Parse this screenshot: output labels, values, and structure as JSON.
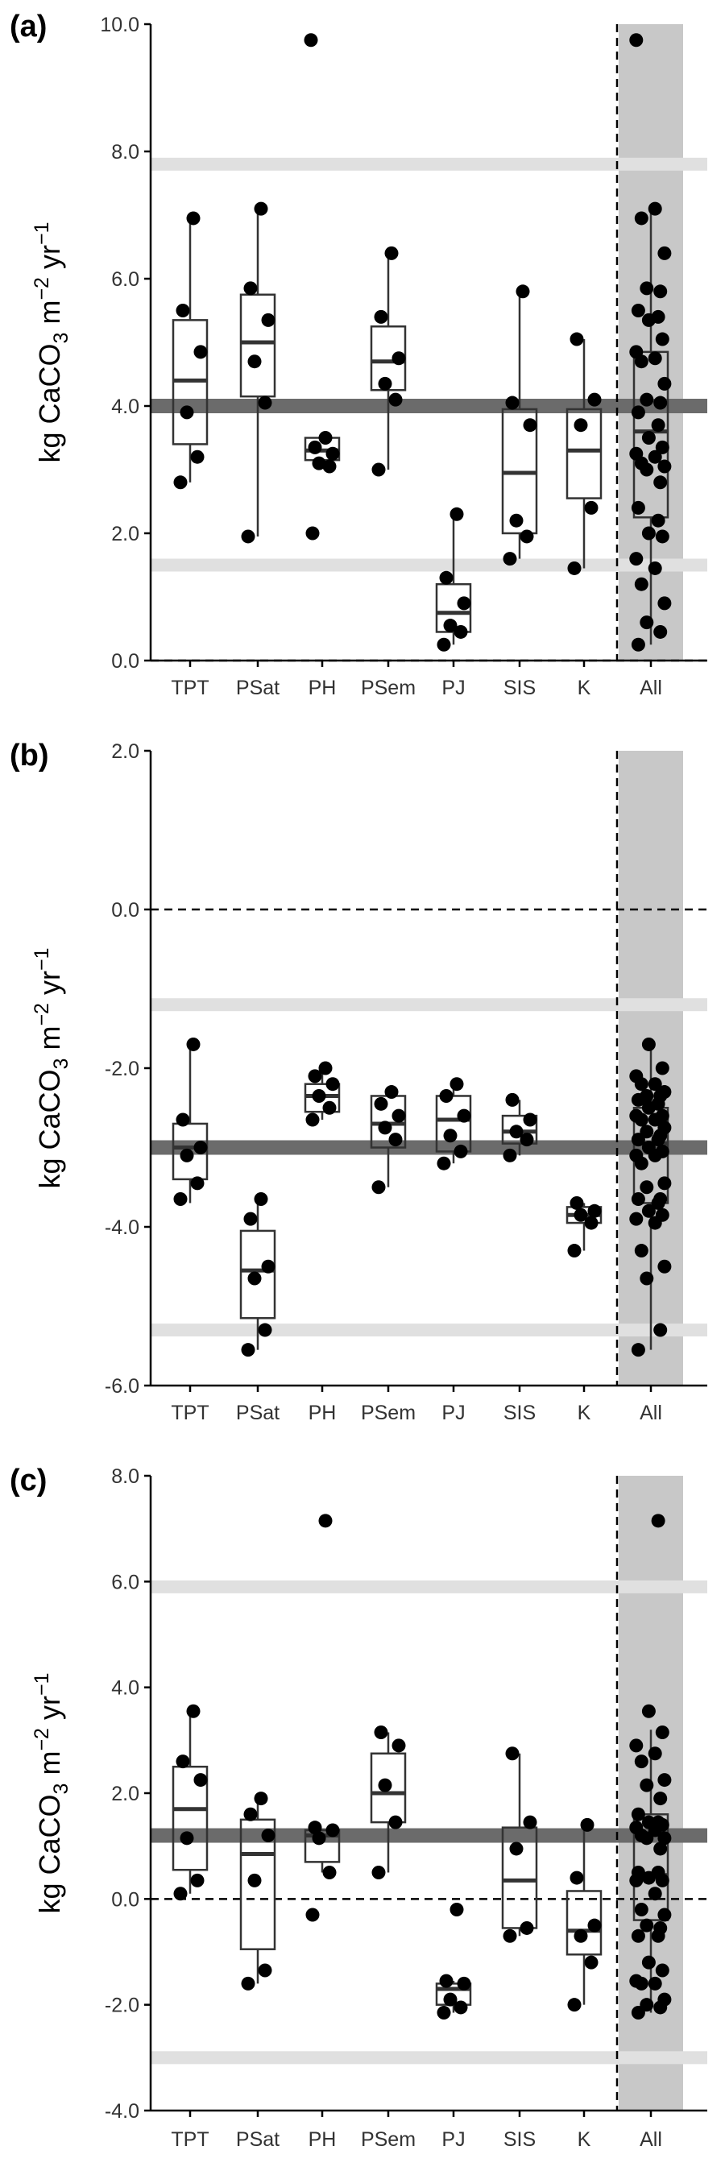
{
  "figure": {
    "ylabel": "kg CaCO3 m-2 yr-1",
    "ylabel_parts": {
      "base": "kg CaCO",
      "sub": "3",
      "m": " m",
      "sup1": "−2",
      "yr": " yr",
      "sup2": "−1"
    }
  },
  "colors": {
    "points": "#000000",
    "box_stroke": "#333333",
    "mean_band": "#6b6b6b",
    "ci_band": "#e0e0e0",
    "all_background": "#c8c8c8",
    "axis": "#000000"
  },
  "chart_data": [
    {
      "panel": "(a)",
      "type": "box",
      "categories": [
        "TPT",
        "PSat",
        "PH",
        "PSem",
        "PJ",
        "SIS",
        "K",
        "All"
      ],
      "ylim": [
        0,
        10
      ],
      "yticks": [
        0,
        2,
        4,
        6,
        8,
        10
      ],
      "ytick_labels": [
        "0.0",
        "2.0",
        "4.0",
        "6.0",
        "8.0",
        "10.0"
      ],
      "reference_lines": {
        "mean": 4.0,
        "lower": 1.5,
        "upper": 7.8,
        "zero_dashed": 0.0
      },
      "boxes": [
        {
          "q1": 3.4,
          "median": 4.4,
          "q3": 5.35,
          "wmin": 2.8,
          "wmax": 6.95
        },
        {
          "q1": 4.15,
          "median": 5.0,
          "q3": 5.75,
          "wmin": 1.95,
          "wmax": 7.1
        },
        {
          "q1": 3.15,
          "median": 3.3,
          "q3": 3.5,
          "wmin": 3.05,
          "wmax": 3.5
        },
        {
          "q1": 4.25,
          "median": 4.7,
          "q3": 5.25,
          "wmin": 3.0,
          "wmax": 6.4
        },
        {
          "q1": 0.45,
          "median": 0.75,
          "q3": 1.2,
          "wmin": 0.25,
          "wmax": 2.3
        },
        {
          "q1": 2.0,
          "median": 2.95,
          "q3": 3.95,
          "wmin": 1.6,
          "wmax": 5.8
        },
        {
          "q1": 2.55,
          "median": 3.3,
          "q3": 3.95,
          "wmin": 1.45,
          "wmax": 5.05
        },
        {
          "q1": 2.25,
          "median": 3.6,
          "q3": 4.85,
          "wmin": 0.25,
          "wmax": 7.1
        }
      ],
      "points": [
        [
          2.8,
          3.2,
          3.9,
          4.85,
          5.5,
          6.95
        ],
        [
          1.95,
          4.05,
          4.7,
          5.35,
          5.85,
          7.1
        ],
        [
          2.0,
          3.05,
          3.1,
          3.25,
          3.35,
          3.5,
          9.75
        ],
        [
          3.0,
          4.1,
          4.35,
          4.75,
          5.4,
          6.4
        ],
        [
          0.25,
          0.45,
          0.55,
          0.9,
          1.3,
          2.3
        ],
        [
          1.6,
          1.95,
          2.2,
          3.7,
          4.05,
          5.8
        ],
        [
          1.45,
          2.4,
          3.7,
          4.1,
          5.05
        ],
        [
          0.25,
          0.45,
          0.6,
          0.9,
          1.2,
          1.45,
          1.6,
          1.95,
          2.0,
          2.2,
          2.4,
          2.8,
          3.0,
          3.05,
          3.1,
          3.2,
          3.25,
          3.35,
          3.5,
          3.7,
          3.9,
          4.05,
          4.1,
          4.35,
          4.7,
          4.75,
          4.85,
          5.05,
          5.35,
          5.4,
          5.5,
          5.8,
          5.85,
          6.4,
          6.95,
          7.1,
          9.75
        ]
      ]
    },
    {
      "panel": "(b)",
      "type": "box",
      "categories": [
        "TPT",
        "PSat",
        "PH",
        "PSem",
        "PJ",
        "SIS",
        "K",
        "All"
      ],
      "ylim": [
        -6,
        2
      ],
      "yticks": [
        -6,
        -4,
        -2,
        0,
        2
      ],
      "ytick_labels": [
        "-6.0",
        "-4.0",
        "-2.0",
        "0.0",
        "2.0"
      ],
      "reference_lines": {
        "mean": -3.0,
        "lower": -5.3,
        "upper": -1.2,
        "zero_dashed": 0.0
      },
      "boxes": [
        {
          "q1": -3.4,
          "median": -3.0,
          "q3": -2.7,
          "wmin": -3.7,
          "wmax": -1.7
        },
        {
          "q1": -5.15,
          "median": -4.55,
          "q3": -4.05,
          "wmin": -5.55,
          "wmax": -3.65
        },
        {
          "q1": -2.55,
          "median": -2.35,
          "q3": -2.2,
          "wmin": -2.65,
          "wmax": -2.0
        },
        {
          "q1": -3.0,
          "median": -2.7,
          "q3": -2.35,
          "wmin": -3.5,
          "wmax": -2.3
        },
        {
          "q1": -3.05,
          "median": -2.65,
          "q3": -2.35,
          "wmin": -3.2,
          "wmax": -2.2
        },
        {
          "q1": -2.95,
          "median": -2.8,
          "q3": -2.6,
          "wmin": -3.1,
          "wmax": -2.4
        },
        {
          "q1": -3.95,
          "median": -3.85,
          "q3": -3.75,
          "wmin": -4.3,
          "wmax": -3.7
        },
        {
          "q1": -3.7,
          "median": -2.95,
          "q3": -2.5,
          "wmin": -5.55,
          "wmax": -1.7
        }
      ],
      "points": [
        [
          -3.65,
          -3.45,
          -3.1,
          -3.0,
          -2.65,
          -1.7
        ],
        [
          -5.55,
          -5.3,
          -4.65,
          -4.5,
          -3.9,
          -3.65
        ],
        [
          -2.65,
          -2.5,
          -2.35,
          -2.2,
          -2.1,
          -2.0
        ],
        [
          -3.5,
          -2.9,
          -2.75,
          -2.6,
          -2.45,
          -2.3
        ],
        [
          -3.2,
          -3.05,
          -2.85,
          -2.6,
          -2.35,
          -2.2
        ],
        [
          -3.1,
          -2.9,
          -2.8,
          -2.65,
          -2.4
        ],
        [
          -4.3,
          -3.95,
          -3.85,
          -3.8,
          -3.7
        ],
        [
          -5.55,
          -5.3,
          -4.65,
          -4.5,
          -4.3,
          -3.95,
          -3.9,
          -3.85,
          -3.8,
          -3.7,
          -3.65,
          -3.65,
          -3.5,
          -3.45,
          -3.2,
          -3.1,
          -3.1,
          -3.05,
          -3.0,
          -2.9,
          -2.9,
          -2.85,
          -2.8,
          -2.75,
          -2.65,
          -2.65,
          -2.6,
          -2.6,
          -2.5,
          -2.45,
          -2.4,
          -2.35,
          -2.35,
          -2.3,
          -2.2,
          -2.2,
          -2.1,
          -2.0,
          -1.7
        ]
      ]
    },
    {
      "panel": "(c)",
      "type": "box",
      "categories": [
        "TPT",
        "PSat",
        "PH",
        "PSem",
        "PJ",
        "SIS",
        "K",
        "All"
      ],
      "ylim": [
        -4,
        8
      ],
      "yticks": [
        -4,
        -2,
        0,
        2,
        4,
        6,
        8
      ],
      "ytick_labels": [
        "-4.0",
        "-2.0",
        "0.0",
        "2.0",
        "4.0",
        "6.0",
        "8.0"
      ],
      "reference_lines": {
        "mean": 1.2,
        "lower": -3.0,
        "upper": 5.9,
        "zero_dashed": 0.0
      },
      "boxes": [
        {
          "q1": 0.55,
          "median": 1.7,
          "q3": 2.5,
          "wmin": 0.1,
          "wmax": 3.55
        },
        {
          "q1": -0.95,
          "median": 0.85,
          "q3": 1.5,
          "wmin": -1.6,
          "wmax": 1.9
        },
        {
          "q1": 0.7,
          "median": 1.2,
          "q3": 1.3,
          "wmin": 0.5,
          "wmax": 1.3
        },
        {
          "q1": 1.45,
          "median": 2.0,
          "q3": 2.75,
          "wmin": 0.5,
          "wmax": 3.15
        },
        {
          "q1": -2.0,
          "median": -1.7,
          "q3": -1.6,
          "wmin": -2.15,
          "wmax": -1.55
        },
        {
          "q1": -0.55,
          "median": 0.35,
          "q3": 1.35,
          "wmin": -0.7,
          "wmax": 2.75
        },
        {
          "q1": -1.05,
          "median": -0.6,
          "q3": 0.15,
          "wmin": -2.0,
          "wmax": 1.4
        },
        {
          "q1": -0.4,
          "median": 0.45,
          "q3": 1.6,
          "wmin": -2.15,
          "wmax": 3.2
        }
      ],
      "points": [
        [
          0.1,
          0.35,
          1.15,
          2.25,
          2.6,
          3.55
        ],
        [
          -1.6,
          -1.35,
          0.35,
          1.2,
          1.6,
          1.9
        ],
        [
          -0.3,
          0.5,
          1.15,
          1.3,
          1.35,
          7.15
        ],
        [
          0.5,
          1.45,
          2.15,
          2.9,
          3.15
        ],
        [
          -2.15,
          -2.05,
          -1.9,
          -1.6,
          -1.55,
          -0.2
        ],
        [
          -0.7,
          -0.55,
          0.95,
          1.45,
          2.75
        ],
        [
          -2.0,
          -1.2,
          -0.7,
          -0.5,
          0.4,
          1.4
        ],
        [
          -2.15,
          -2.05,
          -2.0,
          -1.9,
          -1.6,
          -1.6,
          -1.55,
          -1.35,
          -1.2,
          -0.7,
          -0.7,
          -0.55,
          -0.5,
          -0.3,
          -0.2,
          0.1,
          0.35,
          0.35,
          0.4,
          0.5,
          0.5,
          0.95,
          1.15,
          1.15,
          1.2,
          1.3,
          1.35,
          1.4,
          1.45,
          1.45,
          1.6,
          1.9,
          2.15,
          2.25,
          2.6,
          2.75,
          2.9,
          3.15,
          3.55,
          7.15
        ]
      ]
    }
  ]
}
